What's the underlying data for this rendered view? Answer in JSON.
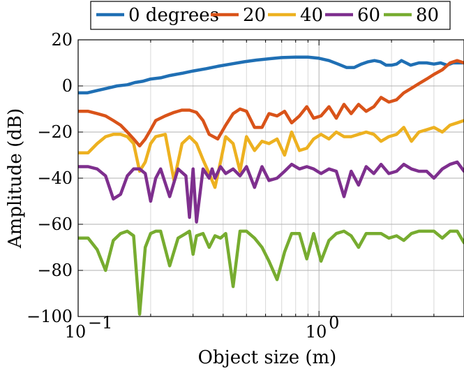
{
  "chart_data": {
    "type": "line",
    "xlabel": "Object size (m)",
    "ylabel": "Amplitude (dB)",
    "xscale": "log",
    "xlim": [
      0.1,
      4.0
    ],
    "ylim": [
      -100,
      20
    ],
    "grid": true,
    "legend_position": "top",
    "x_ticks": [
      {
        "value": 0.1,
        "base": "10",
        "exp": "−1"
      },
      {
        "value": 1,
        "base": "10",
        "exp": "0"
      }
    ],
    "y_ticks": [
      {
        "value": 20,
        "label": "20"
      },
      {
        "value": 0,
        "label": "0"
      },
      {
        "value": -20,
        "label": "−20"
      },
      {
        "value": -40,
        "label": "−40"
      },
      {
        "value": -60,
        "label": "−60"
      },
      {
        "value": -80,
        "label": "−80"
      },
      {
        "value": -100,
        "label": "−100"
      }
    ],
    "series": [
      {
        "name": "0 degrees",
        "color": "#1f6fb4",
        "x": [
          0.1,
          0.109,
          0.12,
          0.132,
          0.145,
          0.16,
          0.172,
          0.185,
          0.2,
          0.22,
          0.24,
          0.27,
          0.3,
          0.34,
          0.38,
          0.43,
          0.49,
          0.55,
          0.62,
          0.7,
          0.8,
          0.9,
          1.0,
          1.1,
          1.2,
          1.3,
          1.4,
          1.5,
          1.6,
          1.7,
          1.8,
          1.9,
          2.0,
          2.1,
          2.2,
          2.3,
          2.4,
          2.6,
          2.8,
          3.0,
          3.2,
          3.4,
          3.6,
          3.8,
          4.0
        ],
        "y": [
          -3,
          -3,
          -2,
          -1,
          0,
          0.5,
          1.5,
          2,
          3,
          3.5,
          4.5,
          5.5,
          6.5,
          7.5,
          8.5,
          9.5,
          10.5,
          11.2,
          11.8,
          12.3,
          12.5,
          12.5,
          12,
          11,
          9.5,
          8,
          8,
          9.5,
          10.5,
          11,
          10.5,
          9,
          9,
          9.5,
          11,
          10,
          9,
          10,
          10,
          9.5,
          10,
          9,
          10,
          10,
          10
        ]
      },
      {
        "name": "20",
        "color": "#d95319",
        "x": [
          0.1,
          0.11,
          0.12,
          0.13,
          0.14,
          0.15,
          0.16,
          0.17,
          0.18,
          0.19,
          0.2,
          0.21,
          0.23,
          0.25,
          0.27,
          0.29,
          0.31,
          0.33,
          0.35,
          0.38,
          0.41,
          0.44,
          0.47,
          0.5,
          0.54,
          0.58,
          0.62,
          0.67,
          0.72,
          0.77,
          0.83,
          0.89,
          0.95,
          1.02,
          1.1,
          1.18,
          1.27,
          1.36,
          1.46,
          1.57,
          1.69,
          1.81,
          1.95,
          2.1,
          2.25,
          2.42,
          2.6,
          2.8,
          3.0,
          3.25,
          3.5,
          3.75,
          4.0
        ],
        "y": [
          -11,
          -11,
          -12,
          -13,
          -15,
          -17,
          -20,
          -23,
          -26,
          -23,
          -19,
          -15,
          -13,
          -11.5,
          -10.5,
          -10.5,
          -11.5,
          -15,
          -21,
          -23,
          -17,
          -12,
          -10,
          -11,
          -18,
          -18,
          -12,
          -13,
          -11,
          -16,
          -13,
          -9,
          -14,
          -13,
          -9,
          -14,
          -8,
          -12,
          -8,
          -11,
          -9,
          -5,
          -7,
          -6,
          -3,
          -1,
          1,
          3,
          5,
          7,
          10,
          11,
          10
        ]
      },
      {
        "name": "40",
        "color": "#edb120",
        "x": [
          0.1,
          0.11,
          0.12,
          0.13,
          0.14,
          0.15,
          0.16,
          0.17,
          0.18,
          0.19,
          0.2,
          0.21,
          0.23,
          0.25,
          0.27,
          0.29,
          0.31,
          0.33,
          0.35,
          0.37,
          0.39,
          0.41,
          0.44,
          0.47,
          0.5,
          0.54,
          0.58,
          0.62,
          0.67,
          0.72,
          0.77,
          0.83,
          0.89,
          0.95,
          1.02,
          1.1,
          1.18,
          1.27,
          1.36,
          1.46,
          1.57,
          1.69,
          1.81,
          1.95,
          2.1,
          2.25,
          2.42,
          2.6,
          2.8,
          3.0,
          3.25,
          3.5,
          3.75,
          4.0
        ],
        "y": [
          -29,
          -29,
          -25,
          -22,
          -21,
          -21,
          -22,
          -25,
          -37,
          -33,
          -25,
          -22,
          -21,
          -41,
          -25,
          -22,
          -25,
          -32,
          -38,
          -44,
          -33,
          -22,
          -25,
          -37,
          -22,
          -28,
          -24,
          -25,
          -23,
          -30,
          -20,
          -28,
          -27,
          -23,
          -21,
          -23,
          -20,
          -22,
          -22,
          -21,
          -20,
          -21,
          -24,
          -22,
          -21,
          -18,
          -24,
          -20,
          -19,
          -18,
          -20,
          -17,
          -16,
          -15
        ]
      },
      {
        "name": "60",
        "color": "#7e2f8e",
        "x": [
          0.1,
          0.11,
          0.12,
          0.13,
          0.14,
          0.15,
          0.16,
          0.17,
          0.18,
          0.19,
          0.2,
          0.21,
          0.22,
          0.24,
          0.26,
          0.28,
          0.29,
          0.3,
          0.31,
          0.33,
          0.35,
          0.36,
          0.37,
          0.39,
          0.41,
          0.44,
          0.47,
          0.5,
          0.54,
          0.58,
          0.62,
          0.67,
          0.72,
          0.77,
          0.83,
          0.89,
          0.95,
          1.02,
          1.1,
          1.18,
          1.27,
          1.36,
          1.46,
          1.57,
          1.69,
          1.81,
          1.95,
          2.1,
          2.25,
          2.42,
          2.6,
          2.8,
          3.0,
          3.25,
          3.5,
          3.75,
          4.0
        ],
        "y": [
          -35,
          -35,
          -36,
          -39,
          -49,
          -47,
          -39,
          -36,
          -36,
          -38,
          -50,
          -40,
          -36,
          -48,
          -36,
          -39,
          -57,
          -36,
          -59,
          -36,
          -40,
          -36,
          -40,
          -35,
          -38,
          -36,
          -39,
          -35,
          -44,
          -35,
          -41,
          -40,
          -37,
          -34,
          -36,
          -35,
          -36,
          -38,
          -36,
          -37,
          -48,
          -37,
          -43,
          -35,
          -38,
          -34,
          -38,
          -37,
          -34,
          -36,
          -37,
          -37,
          -40,
          -36,
          -34,
          -33,
          -37
        ]
      },
      {
        "name": "80",
        "color": "#77ac30",
        "x": [
          0.1,
          0.11,
          0.12,
          0.13,
          0.14,
          0.15,
          0.16,
          0.17,
          0.18,
          0.19,
          0.2,
          0.21,
          0.22,
          0.24,
          0.26,
          0.28,
          0.29,
          0.3,
          0.31,
          0.33,
          0.35,
          0.37,
          0.39,
          0.41,
          0.44,
          0.47,
          0.5,
          0.54,
          0.58,
          0.62,
          0.67,
          0.72,
          0.77,
          0.83,
          0.89,
          0.95,
          1.02,
          1.1,
          1.18,
          1.27,
          1.36,
          1.46,
          1.57,
          1.69,
          1.81,
          1.95,
          2.1,
          2.25,
          2.42,
          2.6,
          2.8,
          3.0,
          3.25,
          3.5,
          3.75,
          4.0
        ],
        "y": [
          -66,
          -66,
          -71,
          -80,
          -67,
          -64,
          -63,
          -65,
          -99,
          -70,
          -64,
          -63,
          -63,
          -78,
          -66,
          -64,
          -63,
          -73,
          -65,
          -64,
          -70,
          -65,
          -66,
          -64,
          -87,
          -63,
          -63,
          -66,
          -70,
          -76,
          -84,
          -72,
          -64,
          -64,
          -75,
          -64,
          -76,
          -67,
          -64,
          -63,
          -65,
          -70,
          -64,
          -64,
          -64,
          -66,
          -65,
          -67,
          -64,
          -63,
          -63,
          -63,
          -66,
          -63,
          -63,
          -68
        ]
      }
    ]
  }
}
